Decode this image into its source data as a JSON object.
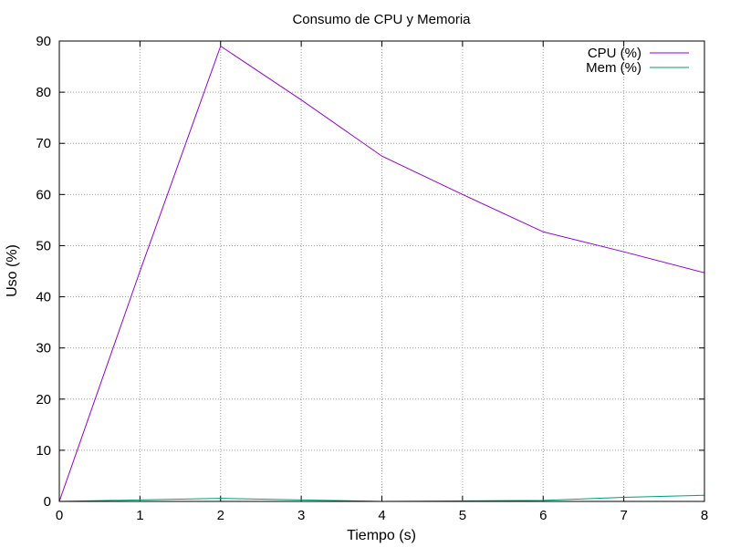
{
  "chart_data": {
    "type": "line",
    "title": "Consumo de CPU y Memoria",
    "xlabel": "Tiempo (s)",
    "ylabel": "Uso (%)",
    "xlim": [
      0,
      8
    ],
    "ylim": [
      0,
      90
    ],
    "x_ticks": [
      0,
      1,
      2,
      3,
      4,
      5,
      6,
      7,
      8
    ],
    "y_ticks": [
      0,
      10,
      20,
      30,
      40,
      50,
      60,
      70,
      80,
      90
    ],
    "grid": true,
    "legend_position": "top-right",
    "x": [
      0,
      1,
      2,
      3,
      4,
      5,
      6,
      7,
      8
    ],
    "series": [
      {
        "name": "CPU (%)",
        "color": "#9400d3",
        "values": [
          0,
          45,
          89,
          78.5,
          67.5,
          60,
          52.7,
          48.8,
          44.7
        ]
      },
      {
        "name": "Mem (%)",
        "color": "#009e73",
        "values": [
          0,
          0.3,
          0.6,
          0.3,
          0,
          0.1,
          0.2,
          0.8,
          1.2
        ]
      }
    ]
  }
}
